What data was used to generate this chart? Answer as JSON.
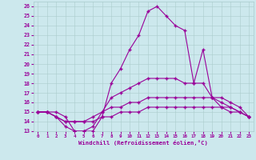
{
  "xlabel": "Windchill (Refroidissement éolien,°C)",
  "background_color": "#cce8ed",
  "line_color": "#990099",
  "grid_color": "#aacccc",
  "x_hours": [
    0,
    1,
    2,
    3,
    4,
    5,
    6,
    7,
    8,
    9,
    10,
    11,
    12,
    13,
    14,
    15,
    16,
    17,
    18,
    19,
    20,
    21,
    22,
    23
  ],
  "line1": [
    15,
    15,
    15,
    14.5,
    13,
    13,
    13,
    14.5,
    18,
    19.5,
    21.5,
    23,
    25.5,
    26,
    25,
    24,
    23.5,
    18,
    21.5,
    16.5,
    15.5,
    15.5,
    15,
    14.5
  ],
  "line2": [
    15,
    15,
    14.5,
    13.5,
    13,
    13,
    13.5,
    15,
    16.5,
    17,
    17.5,
    18,
    18.5,
    18.5,
    18.5,
    18.5,
    18,
    18,
    18,
    16.5,
    16,
    15.5,
    15,
    14.5
  ],
  "line3": [
    15,
    15,
    14.5,
    14,
    14,
    14,
    14.5,
    15,
    15.5,
    15.5,
    16,
    16,
    16.5,
    16.5,
    16.5,
    16.5,
    16.5,
    16.5,
    16.5,
    16.5,
    16.5,
    16,
    15.5,
    14.5
  ],
  "line4": [
    15,
    15,
    14.5,
    14,
    14,
    14,
    14,
    14.5,
    14.5,
    15,
    15,
    15,
    15.5,
    15.5,
    15.5,
    15.5,
    15.5,
    15.5,
    15.5,
    15.5,
    15.5,
    15,
    15,
    14.5
  ],
  "ylim": [
    13,
    26.5
  ],
  "yticks": [
    13,
    14,
    15,
    16,
    17,
    18,
    19,
    20,
    21,
    22,
    23,
    24,
    25,
    26
  ],
  "xlim": [
    -0.5,
    23.5
  ],
  "xticks": [
    0,
    1,
    2,
    3,
    4,
    5,
    6,
    7,
    8,
    9,
    10,
    11,
    12,
    13,
    14,
    15,
    16,
    17,
    18,
    19,
    20,
    21,
    22,
    23
  ]
}
